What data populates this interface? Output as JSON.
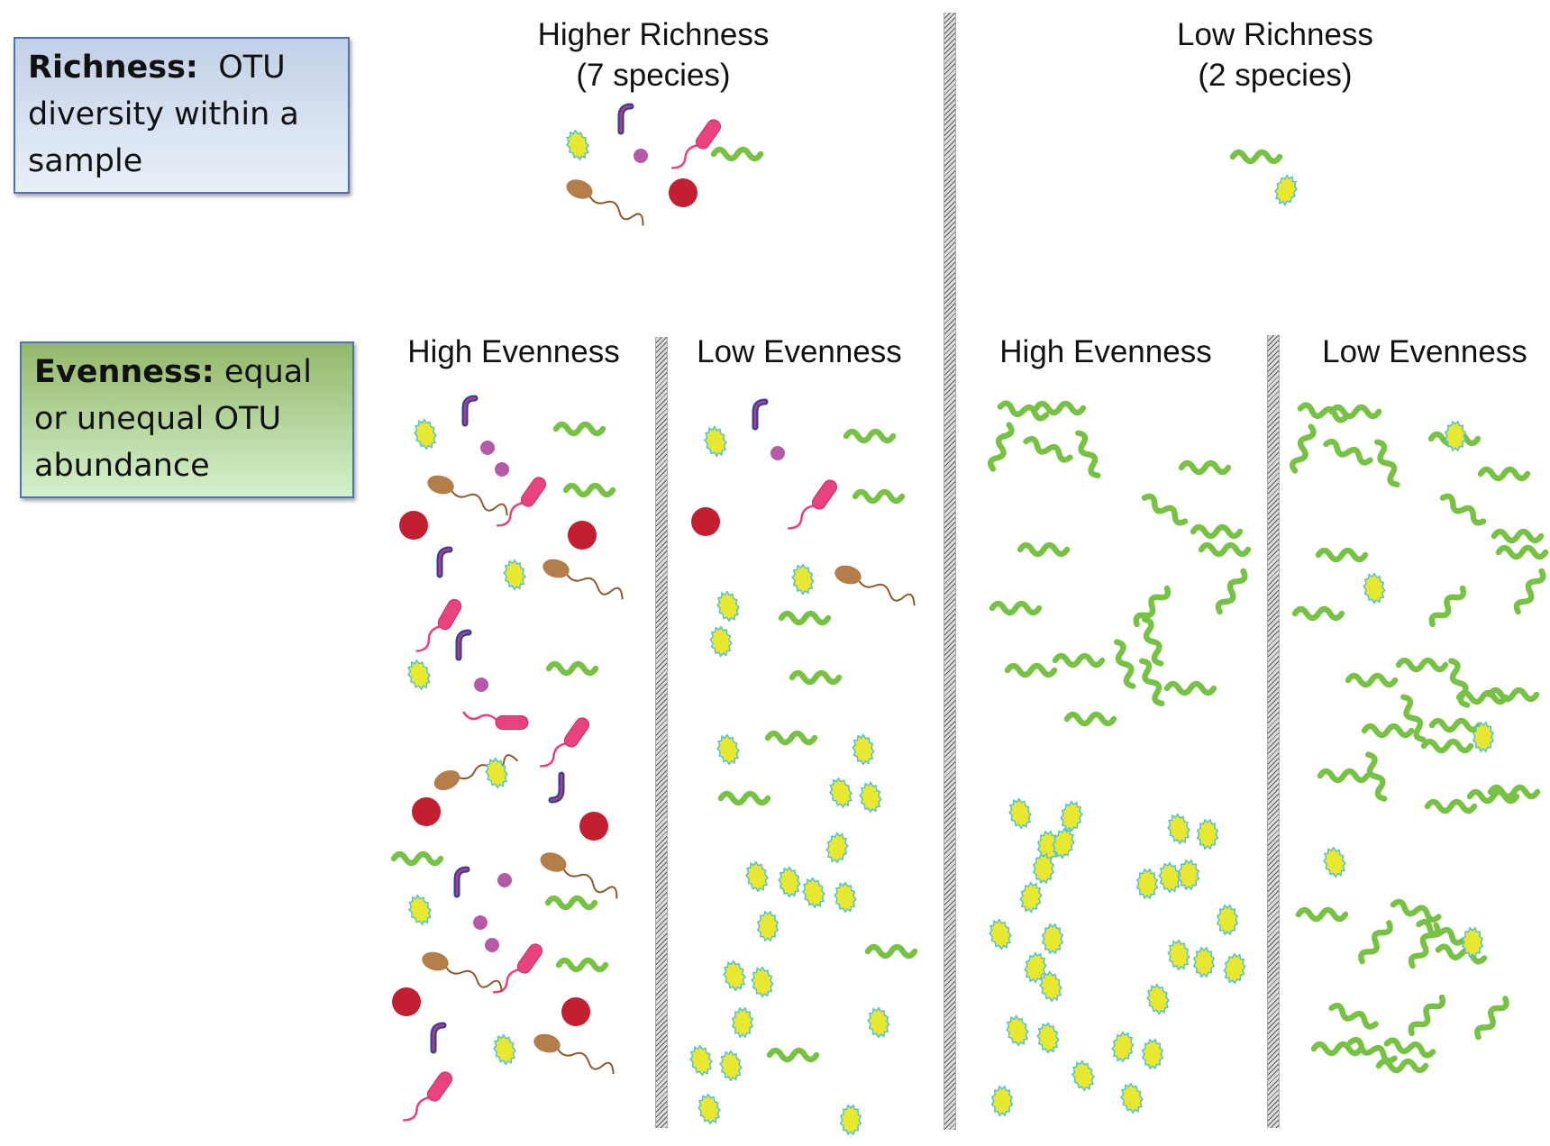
{
  "definitions": {
    "richness": {
      "term": "Richness:",
      "text": "OTU diversity within a sample"
    },
    "evenness": {
      "term": "Evenness:",
      "text": "equal or unequal OTU abundance"
    }
  },
  "headings": {
    "higher_richness_line1": "Higher Richness",
    "higher_richness_line2": "(7 species)",
    "low_richness_line1": "Low Richness",
    "low_richness_line2": "(2 species)",
    "high_evenness_left": "High Evenness",
    "low_evenness_left": "Low Evenness",
    "high_evenness_right": "High Evenness",
    "low_evenness_right": "Low Evenness"
  },
  "organism_types": [
    "yellow-spiky-cocci",
    "purple-curved-rod",
    "purple-small-cocci",
    "pink-flagellated-rod",
    "green-spirillum",
    "brown-flagellated-cell",
    "red-round-cocci"
  ],
  "colors": {
    "yellow": "#e8e830",
    "yellow_spikes": "#55c0d0",
    "green": "#77c244",
    "pink": "#e8437f",
    "purple_outer": "#3a3c9a",
    "purple_inner": "#a9447f",
    "purple_dot": "#b65aa8",
    "brown": "#b47e4a",
    "red": "#c22030"
  }
}
